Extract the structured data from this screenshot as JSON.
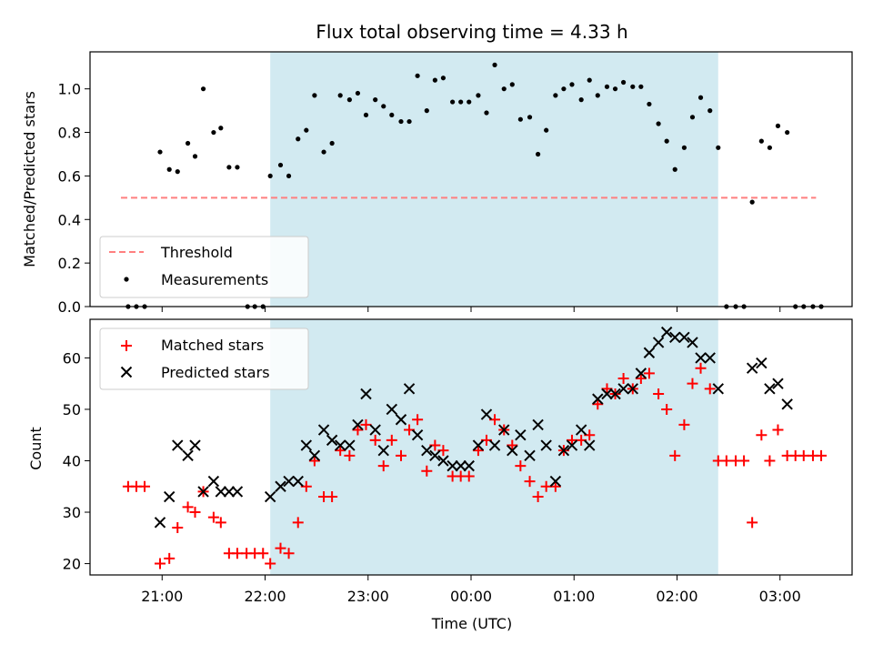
{
  "chart_data": [
    {
      "type": "scatter",
      "title": "Flux total observing time = 4.33 h",
      "ylabel": "Matched/Predicted stars",
      "ylim": [
        0,
        1.17
      ],
      "xlim_hours": [
        20.3,
        27.7
      ],
      "shaded_span_hours": [
        22.05,
        26.4
      ],
      "shade_color": "#add8e6",
      "yticks": [
        "0.0",
        "0.2",
        "0.4",
        "0.6",
        "0.8",
        "1.0"
      ],
      "threshold": {
        "name": "Threshold",
        "value": 0.5,
        "x_range_hours": [
          20.6,
          27.35
        ],
        "color": "#ff7f7f"
      },
      "series": [
        {
          "name": "Measurements",
          "color": "#000000",
          "points": [
            [
              20.67,
              0.0
            ],
            [
              20.75,
              0.0
            ],
            [
              20.83,
              0.0
            ],
            [
              20.98,
              0.71
            ],
            [
              21.07,
              0.63
            ],
            [
              21.15,
              0.62
            ],
            [
              21.25,
              0.75
            ],
            [
              21.32,
              0.69
            ],
            [
              21.4,
              1.0
            ],
            [
              21.5,
              0.8
            ],
            [
              21.57,
              0.82
            ],
            [
              21.65,
              0.64
            ],
            [
              21.73,
              0.64
            ],
            [
              21.83,
              0.0
            ],
            [
              21.9,
              0.0
            ],
            [
              21.98,
              0.0
            ],
            [
              22.05,
              0.6
            ],
            [
              22.15,
              0.65
            ],
            [
              22.23,
              0.6
            ],
            [
              22.32,
              0.77
            ],
            [
              22.4,
              0.81
            ],
            [
              22.48,
              0.97
            ],
            [
              22.57,
              0.71
            ],
            [
              22.65,
              0.75
            ],
            [
              22.73,
              0.97
            ],
            [
              22.82,
              0.95
            ],
            [
              22.9,
              0.98
            ],
            [
              22.98,
              0.88
            ],
            [
              23.07,
              0.95
            ],
            [
              23.15,
              0.92
            ],
            [
              23.23,
              0.88
            ],
            [
              23.32,
              0.85
            ],
            [
              23.4,
              0.85
            ],
            [
              23.48,
              1.06
            ],
            [
              23.57,
              0.9
            ],
            [
              23.65,
              1.04
            ],
            [
              23.73,
              1.05
            ],
            [
              23.82,
              0.94
            ],
            [
              23.9,
              0.94
            ],
            [
              23.98,
              0.94
            ],
            [
              24.07,
              0.97
            ],
            [
              24.15,
              0.89
            ],
            [
              24.23,
              1.11
            ],
            [
              24.32,
              1.0
            ],
            [
              24.4,
              1.02
            ],
            [
              24.48,
              0.86
            ],
            [
              24.57,
              0.87
            ],
            [
              24.65,
              0.7
            ],
            [
              24.73,
              0.81
            ],
            [
              24.82,
              0.97
            ],
            [
              24.9,
              1.0
            ],
            [
              24.98,
              1.02
            ],
            [
              25.07,
              0.95
            ],
            [
              25.15,
              1.04
            ],
            [
              25.23,
              0.97
            ],
            [
              25.32,
              1.01
            ],
            [
              25.4,
              1.0
            ],
            [
              25.48,
              1.03
            ],
            [
              25.57,
              1.01
            ],
            [
              25.65,
              1.01
            ],
            [
              25.73,
              0.93
            ],
            [
              25.82,
              0.84
            ],
            [
              25.9,
              0.76
            ],
            [
              25.98,
              0.63
            ],
            [
              26.07,
              0.73
            ],
            [
              26.15,
              0.87
            ],
            [
              26.23,
              0.96
            ],
            [
              26.32,
              0.9
            ],
            [
              26.4,
              0.73
            ],
            [
              26.48,
              0.0
            ],
            [
              26.57,
              0.0
            ],
            [
              26.65,
              0.0
            ],
            [
              26.73,
              0.48
            ],
            [
              26.82,
              0.76
            ],
            [
              26.9,
              0.73
            ],
            [
              26.98,
              0.83
            ],
            [
              27.07,
              0.8
            ],
            [
              27.15,
              0.0
            ],
            [
              27.23,
              0.0
            ],
            [
              27.32,
              0.0
            ],
            [
              27.4,
              0.0
            ]
          ]
        }
      ],
      "legend": {
        "location": "lower-left",
        "entries": [
          "Threshold",
          "Measurements"
        ]
      }
    },
    {
      "type": "scatter",
      "xlabel": "Time (UTC)",
      "ylabel": "Count",
      "ylim": [
        17.8,
        67.5
      ],
      "xlim_hours": [
        20.3,
        27.7
      ],
      "shaded_span_hours": [
        22.05,
        26.4
      ],
      "shade_color": "#add8e6",
      "yticks": [
        "20",
        "30",
        "40",
        "50",
        "60"
      ],
      "xticks": [
        {
          "hour": 21,
          "label": "21:00"
        },
        {
          "hour": 22,
          "label": "22:00"
        },
        {
          "hour": 23,
          "label": "23:00"
        },
        {
          "hour": 24,
          "label": "00:00"
        },
        {
          "hour": 25,
          "label": "01:00"
        },
        {
          "hour": 26,
          "label": "02:00"
        },
        {
          "hour": 27,
          "label": "03:00"
        }
      ],
      "series": [
        {
          "name": "Matched stars",
          "marker": "plus",
          "color": "#ff0000",
          "points": [
            [
              20.67,
              35
            ],
            [
              20.75,
              35
            ],
            [
              20.83,
              35
            ],
            [
              20.98,
              20
            ],
            [
              21.07,
              21
            ],
            [
              21.15,
              27
            ],
            [
              21.25,
              31
            ],
            [
              21.32,
              30
            ],
            [
              21.4,
              34
            ],
            [
              21.5,
              29
            ],
            [
              21.57,
              28
            ],
            [
              21.65,
              22
            ],
            [
              21.73,
              22
            ],
            [
              21.82,
              22
            ],
            [
              21.9,
              22
            ],
            [
              21.98,
              22
            ],
            [
              22.05,
              20
            ],
            [
              22.15,
              23
            ],
            [
              22.23,
              22
            ],
            [
              22.32,
              28
            ],
            [
              22.4,
              35
            ],
            [
              22.48,
              40
            ],
            [
              22.57,
              33
            ],
            [
              22.65,
              33
            ],
            [
              22.73,
              42
            ],
            [
              22.82,
              41
            ],
            [
              22.9,
              46
            ],
            [
              22.98,
              47
            ],
            [
              23.07,
              44
            ],
            [
              23.15,
              39
            ],
            [
              23.23,
              44
            ],
            [
              23.32,
              41
            ],
            [
              23.4,
              46
            ],
            [
              23.48,
              48
            ],
            [
              23.57,
              38
            ],
            [
              23.65,
              43
            ],
            [
              23.73,
              42
            ],
            [
              23.82,
              37
            ],
            [
              23.9,
              37
            ],
            [
              23.98,
              37
            ],
            [
              24.07,
              42
            ],
            [
              24.15,
              44
            ],
            [
              24.23,
              48
            ],
            [
              24.32,
              46
            ],
            [
              24.4,
              43
            ],
            [
              24.48,
              39
            ],
            [
              24.57,
              36
            ],
            [
              24.65,
              33
            ],
            [
              24.73,
              35
            ],
            [
              24.82,
              35
            ],
            [
              24.9,
              42
            ],
            [
              24.98,
              44
            ],
            [
              25.07,
              44
            ],
            [
              25.15,
              45
            ],
            [
              25.23,
              51
            ],
            [
              25.32,
              54
            ],
            [
              25.4,
              53
            ],
            [
              25.48,
              56
            ],
            [
              25.57,
              54
            ],
            [
              25.65,
              56
            ],
            [
              25.73,
              57
            ],
            [
              25.82,
              53
            ],
            [
              25.9,
              50
            ],
            [
              25.98,
              41
            ],
            [
              26.07,
              47
            ],
            [
              26.15,
              55
            ],
            [
              26.23,
              58
            ],
            [
              26.32,
              54
            ],
            [
              26.4,
              40
            ],
            [
              26.48,
              40
            ],
            [
              26.57,
              40
            ],
            [
              26.65,
              40
            ],
            [
              26.73,
              28
            ],
            [
              26.82,
              45
            ],
            [
              26.9,
              40
            ],
            [
              26.98,
              46
            ],
            [
              27.07,
              41
            ],
            [
              27.15,
              41
            ],
            [
              27.23,
              41
            ],
            [
              27.32,
              41
            ],
            [
              27.4,
              41
            ]
          ]
        },
        {
          "name": "Predicted stars",
          "marker": "x",
          "color": "#000000",
          "points": [
            [
              20.98,
              28
            ],
            [
              21.07,
              33
            ],
            [
              21.15,
              43
            ],
            [
              21.25,
              41
            ],
            [
              21.32,
              43
            ],
            [
              21.4,
              34
            ],
            [
              21.5,
              36
            ],
            [
              21.57,
              34
            ],
            [
              21.65,
              34
            ],
            [
              21.73,
              34
            ],
            [
              22.05,
              33
            ],
            [
              22.15,
              35
            ],
            [
              22.23,
              36
            ],
            [
              22.32,
              36
            ],
            [
              22.4,
              43
            ],
            [
              22.48,
              41
            ],
            [
              22.57,
              46
            ],
            [
              22.65,
              44
            ],
            [
              22.73,
              43
            ],
            [
              22.82,
              43
            ],
            [
              22.9,
              47
            ],
            [
              22.98,
              53
            ],
            [
              23.07,
              46
            ],
            [
              23.15,
              42
            ],
            [
              23.23,
              50
            ],
            [
              23.32,
              48
            ],
            [
              23.4,
              54
            ],
            [
              23.48,
              45
            ],
            [
              23.57,
              42
            ],
            [
              23.65,
              41
            ],
            [
              23.73,
              40
            ],
            [
              23.82,
              39
            ],
            [
              23.9,
              39
            ],
            [
              23.98,
              39
            ],
            [
              24.07,
              43
            ],
            [
              24.15,
              49
            ],
            [
              24.23,
              43
            ],
            [
              24.32,
              46
            ],
            [
              24.4,
              42
            ],
            [
              24.48,
              45
            ],
            [
              24.57,
              41
            ],
            [
              24.65,
              47
            ],
            [
              24.73,
              43
            ],
            [
              24.82,
              36
            ],
            [
              24.9,
              42
            ],
            [
              24.98,
              43
            ],
            [
              25.07,
              46
            ],
            [
              25.15,
              43
            ],
            [
              25.23,
              52
            ],
            [
              25.32,
              53
            ],
            [
              25.4,
              53
            ],
            [
              25.48,
              54
            ],
            [
              25.57,
              54
            ],
            [
              25.65,
              57
            ],
            [
              25.73,
              61
            ],
            [
              25.82,
              63
            ],
            [
              25.9,
              65
            ],
            [
              25.98,
              64
            ],
            [
              26.07,
              64
            ],
            [
              26.15,
              63
            ],
            [
              26.23,
              60
            ],
            [
              26.32,
              60
            ],
            [
              26.4,
              54
            ],
            [
              26.73,
              58
            ],
            [
              26.82,
              59
            ],
            [
              26.9,
              54
            ],
            [
              26.98,
              55
            ],
            [
              27.07,
              51
            ]
          ]
        }
      ],
      "legend": {
        "location": "top-left",
        "entries": [
          "Matched stars",
          "Predicted stars"
        ]
      }
    }
  ]
}
